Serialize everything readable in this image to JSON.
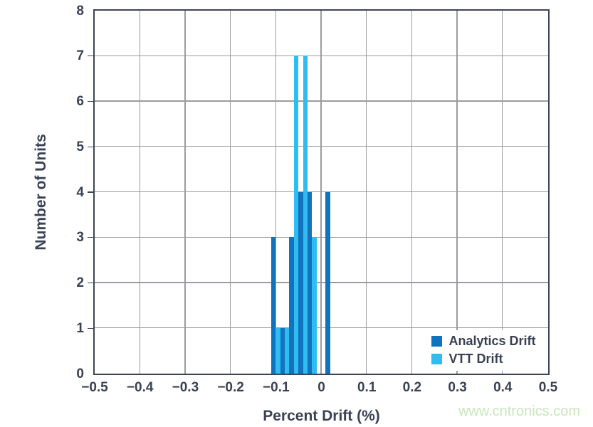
{
  "chart_data": {
    "type": "bar",
    "subtype": "dual-histogram-interleaved",
    "xlabel": "Percent Drift (%)",
    "ylabel": "Number of Units",
    "xlim": [
      -0.5,
      0.5
    ],
    "ylim": [
      0,
      8
    ],
    "grid": true,
    "bin_width": 0.02,
    "bar_width": 0.01,
    "categories": [
      -0.1,
      -0.08,
      -0.06,
      -0.04,
      -0.02,
      0,
      0.02
    ],
    "series": [
      {
        "name": "Analytics Drift",
        "color": "#1173bd",
        "offset": -0.01,
        "values": [
          3,
          1,
          3,
          4,
          4,
          0,
          4
        ]
      },
      {
        "name": "VTT Drift",
        "color": "#2fbdf1",
        "offset": 0,
        "values": [
          1,
          1,
          7,
          7,
          3,
          0,
          0
        ]
      }
    ],
    "x_ticks": [
      {
        "value": -0.5,
        "label": "−0.5"
      },
      {
        "value": -0.4,
        "label": "−0.4"
      },
      {
        "value": -0.3,
        "label": "−0.3"
      },
      {
        "value": -0.2,
        "label": "−0.2"
      },
      {
        "value": -0.1,
        "label": "−0.1"
      },
      {
        "value": 0,
        "label": "0"
      },
      {
        "value": 0.1,
        "label": "0.1"
      },
      {
        "value": 0.2,
        "label": "0.2"
      },
      {
        "value": 0.3,
        "label": "0.3"
      },
      {
        "value": 0.4,
        "label": "0.4"
      },
      {
        "value": 0.5,
        "label": "0.5"
      }
    ],
    "y_ticks": [
      {
        "value": 0,
        "label": "0"
      },
      {
        "value": 1,
        "label": "1"
      },
      {
        "value": 2,
        "label": "2"
      },
      {
        "value": 3,
        "label": "3"
      },
      {
        "value": 4,
        "label": "4"
      },
      {
        "value": 5,
        "label": "5"
      },
      {
        "value": 6,
        "label": "6"
      },
      {
        "value": 7,
        "label": "7"
      },
      {
        "value": 8,
        "label": "8"
      }
    ],
    "legend": {
      "position": "lower right",
      "items": [
        "Analytics Drift",
        "VTT Drift"
      ]
    }
  },
  "style": {
    "axis_color": "#3d4456",
    "grid_color": "#9b9ba1",
    "text_color": "#3a4154",
    "background": "#ffffff"
  },
  "watermark": {
    "text": "www.cntronics.com",
    "color": "#c9e7bb"
  }
}
